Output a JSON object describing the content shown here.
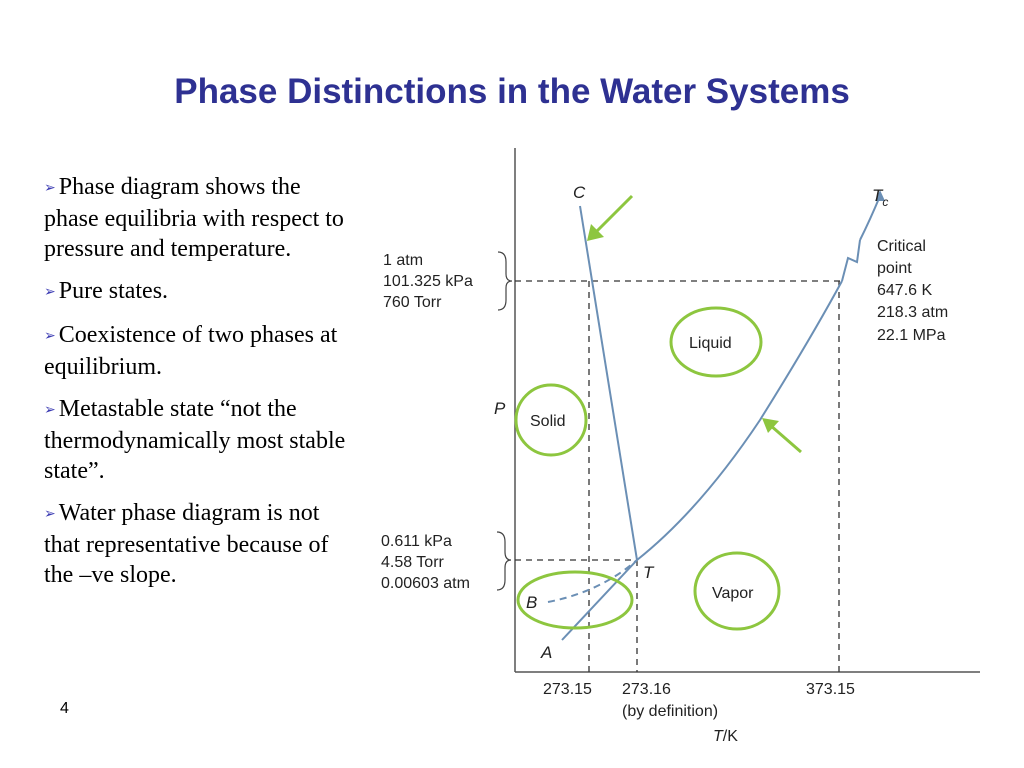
{
  "slide": {
    "title": "Phase Distinctions in the Water Systems",
    "page_number": "4",
    "bullets": [
      "Phase diagram shows the phase equilibria with respect to pressure and temperature.",
      "Pure states.",
      "Coexistence of two phases at equilibrium.",
      "Metastable state “not the thermodynamically most stable state”.",
      "Water phase diagram is not that representative because of the –ve slope."
    ],
    "bullet_marker_icon": "arrowhead-bullet-icon",
    "colors": {
      "title": "#2e3192",
      "curves": "#6b8fb5",
      "highlight": "#8dc63f"
    }
  },
  "diagram": {
    "axis_y": "P",
    "axis_x_italic": "T",
    "axis_x_rest": "/K",
    "point_C": "C",
    "point_Tc": "T",
    "point_Tc_sub": "c",
    "point_T": "T",
    "point_B": "B",
    "point_A": "A",
    "pressure_high": [
      "1 atm",
      "101.325 kPa",
      "760 Torr"
    ],
    "pressure_low": [
      "0.611 kPa",
      "4.58 Torr",
      "0.00603 atm"
    ],
    "critical_point": [
      "Critical",
      "point",
      "647.6 K",
      "218.3 atm",
      "22.1 MPa"
    ],
    "x_ticks": [
      "273.15",
      "273.16",
      "373.15"
    ],
    "x_tick_note": "(by definition)",
    "regions": {
      "liquid": "Liquid",
      "solid": "Solid",
      "vapor": "Vapor"
    }
  }
}
